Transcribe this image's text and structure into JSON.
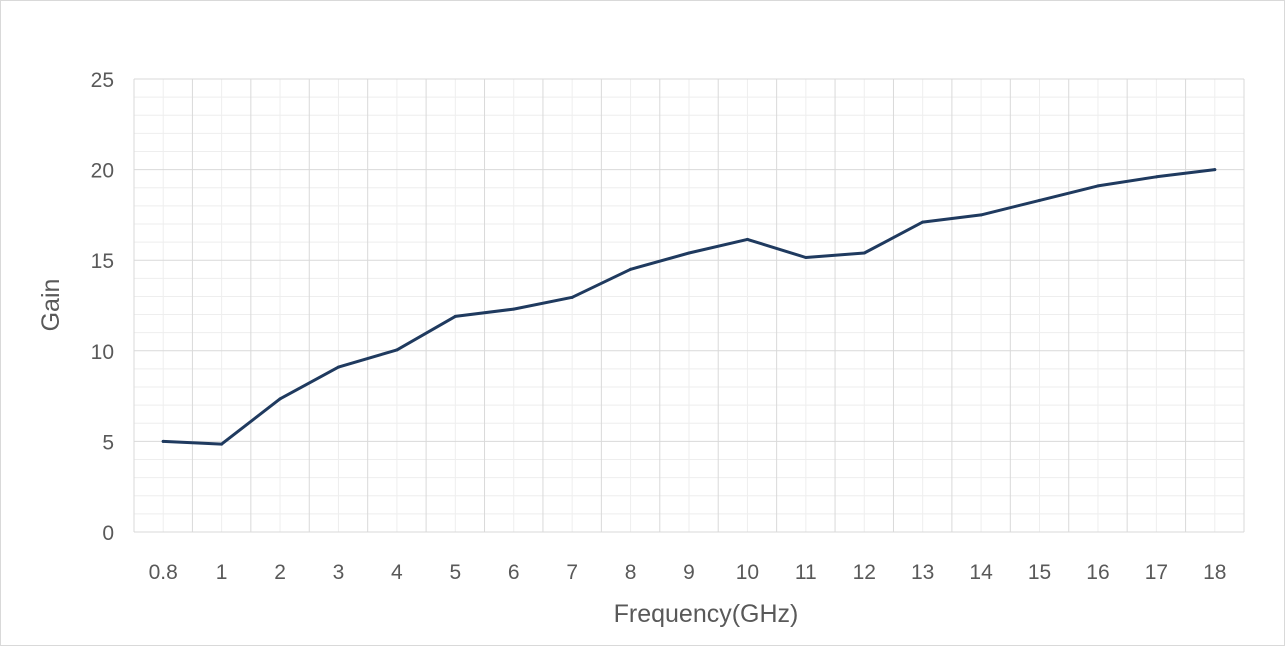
{
  "chart_data": {
    "type": "line",
    "title": "",
    "xlabel": "Frequency(GHz)",
    "ylabel": "Gain",
    "categories": [
      "0.8",
      "1",
      "2",
      "3",
      "4",
      "5",
      "6",
      "7",
      "8",
      "9",
      "10",
      "11",
      "12",
      "13",
      "14",
      "15",
      "16",
      "17",
      "18"
    ],
    "series": [
      {
        "values": [
          5.0,
          4.85,
          7.35,
          9.1,
          10.05,
          11.9,
          12.3,
          12.95,
          14.5,
          15.4,
          16.15,
          15.15,
          15.4,
          17.1,
          17.5,
          18.3,
          19.1,
          19.6,
          20.0
        ],
        "color": "#1f3a5f"
      }
    ],
    "yticks": [
      0,
      5,
      10,
      15,
      20,
      25
    ],
    "ylim": [
      0,
      25
    ],
    "grid": true,
    "minor_grid": true,
    "legend": "none"
  }
}
